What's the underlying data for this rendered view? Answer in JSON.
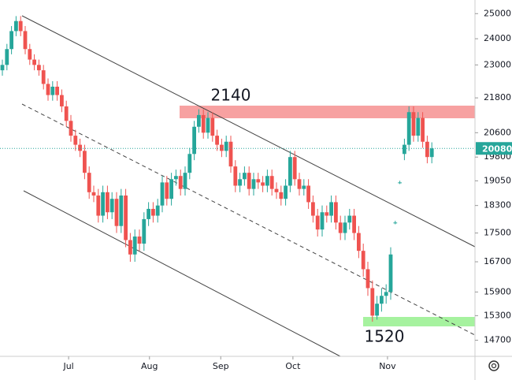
{
  "chart_data": {
    "type": "candlestick",
    "annotations": [
      "2140",
      "1520"
    ],
    "up_color": "#26a69a",
    "down_color": "#ef5350",
    "log_scale": true,
    "ylim": [
      14320,
      25560
    ],
    "yticks": [
      25000,
      24000,
      23000,
      21800,
      20600,
      19800,
      19050,
      18300,
      17500,
      16700,
      15900,
      15300,
      14700
    ],
    "xticks": [
      {
        "value": 14.5,
        "label": "Jul"
      },
      {
        "value": 32.2,
        "label": "Aug"
      },
      {
        "value": 47.8,
        "label": "Sep"
      },
      {
        "value": 63.6,
        "label": "Oct"
      },
      {
        "value": 84.3,
        "label": "Nov"
      }
    ],
    "last_price": 20080,
    "open": [
      22800,
      23000,
      23600,
      24300,
      24700,
      24300,
      23600,
      23200,
      23000,
      22800,
      22300,
      21900,
      22200,
      21900,
      21500,
      21000,
      20500,
      20200,
      20000,
      19300,
      18700,
      18600,
      18000,
      18700,
      18100,
      18500,
      17700,
      18600,
      17300,
      16900,
      17400,
      17200,
      17900,
      18200,
      18000,
      18300,
      19000,
      18500,
      19100,
      19200,
      18800,
      19300,
      19900,
      20800,
      21200,
      20600,
      21100,
      20500,
      20200,
      20000,
      20300,
      19500,
      18900,
      19100,
      19300,
      18800,
      19100,
      19000,
      18900,
      19200,
      18800,
      18700,
      18500,
      18900,
      19800,
      19100,
      18800,
      18900,
      18400,
      18000,
      17600,
      18100,
      18000,
      18400,
      17800,
      17500,
      17800,
      18000,
      17500,
      17000,
      16500,
      16000,
      15300,
      15600,
      15800,
      15900,
      17800,
      19000,
      19900,
      20200,
      21300,
      20500,
      21100,
      20300,
      19800
    ],
    "high": [
      23200,
      23800,
      24500,
      24900,
      24900,
      24500,
      23800,
      23400,
      23200,
      23000,
      22500,
      22400,
      22400,
      22100,
      21700,
      21200,
      20700,
      20400,
      20200,
      19500,
      18900,
      18800,
      18900,
      18900,
      18700,
      18700,
      18800,
      18800,
      17500,
      17600,
      17600,
      18100,
      18400,
      18400,
      18500,
      19200,
      19200,
      19300,
      19400,
      19400,
      19500,
      20100,
      21000,
      21400,
      21400,
      21300,
      21300,
      20700,
      20400,
      20500,
      20500,
      19700,
      19300,
      19500,
      19500,
      19300,
      19300,
      19200,
      19400,
      19400,
      19000,
      18900,
      19100,
      20000,
      20000,
      19300,
      19100,
      19100,
      18600,
      18200,
      18300,
      18300,
      18600,
      18600,
      18000,
      18000,
      18200,
      18200,
      17700,
      17200,
      16700,
      16200,
      15800,
      16000,
      16100,
      17100,
      17850,
      19050,
      20400,
      21500,
      21500,
      21300,
      21300,
      20500,
      20280
    ],
    "low": [
      22600,
      22800,
      23400,
      24100,
      24100,
      23400,
      23000,
      22800,
      22600,
      22100,
      21700,
      21700,
      21700,
      21300,
      20800,
      20300,
      20000,
      19800,
      19100,
      18500,
      18400,
      17800,
      17800,
      17900,
      17900,
      17500,
      17500,
      17100,
      16700,
      16700,
      17000,
      17000,
      17700,
      17800,
      17800,
      18100,
      18300,
      18300,
      18900,
      18600,
      18600,
      19100,
      19700,
      20600,
      20400,
      20400,
      20300,
      20000,
      19800,
      19800,
      19300,
      18700,
      18700,
      18900,
      18600,
      18600,
      18800,
      18700,
      18700,
      18600,
      18500,
      18300,
      18300,
      18700,
      18900,
      18600,
      18600,
      18200,
      17800,
      17400,
      17400,
      17800,
      17800,
      17600,
      17300,
      17300,
      17600,
      17300,
      16800,
      16300,
      15800,
      15150,
      15200,
      15400,
      15600,
      15700,
      17750,
      18950,
      19700,
      20000,
      20300,
      20300,
      20100,
      19600,
      19600
    ],
    "close": [
      23000,
      23600,
      24300,
      24700,
      24300,
      23600,
      23200,
      23000,
      22800,
      22300,
      21900,
      22200,
      21900,
      21500,
      21000,
      20500,
      20200,
      20000,
      19300,
      18700,
      18600,
      18000,
      18700,
      18100,
      18500,
      17700,
      18600,
      17300,
      16900,
      17400,
      17200,
      17900,
      18200,
      18000,
      18300,
      19000,
      18500,
      19100,
      19200,
      18800,
      19300,
      19900,
      20800,
      21200,
      20600,
      21100,
      20500,
      20200,
      20000,
      20300,
      19500,
      18900,
      19100,
      19300,
      18800,
      19100,
      19000,
      18900,
      19200,
      18800,
      18700,
      18500,
      18900,
      19800,
      19100,
      18800,
      18900,
      18400,
      18000,
      17600,
      18100,
      18000,
      18400,
      17800,
      17500,
      17800,
      18000,
      17500,
      17000,
      16500,
      16000,
      15300,
      15600,
      15800,
      15900,
      16900,
      17800,
      19000,
      20200,
      21300,
      20500,
      21100,
      20300,
      19800,
      20080
    ]
  }
}
